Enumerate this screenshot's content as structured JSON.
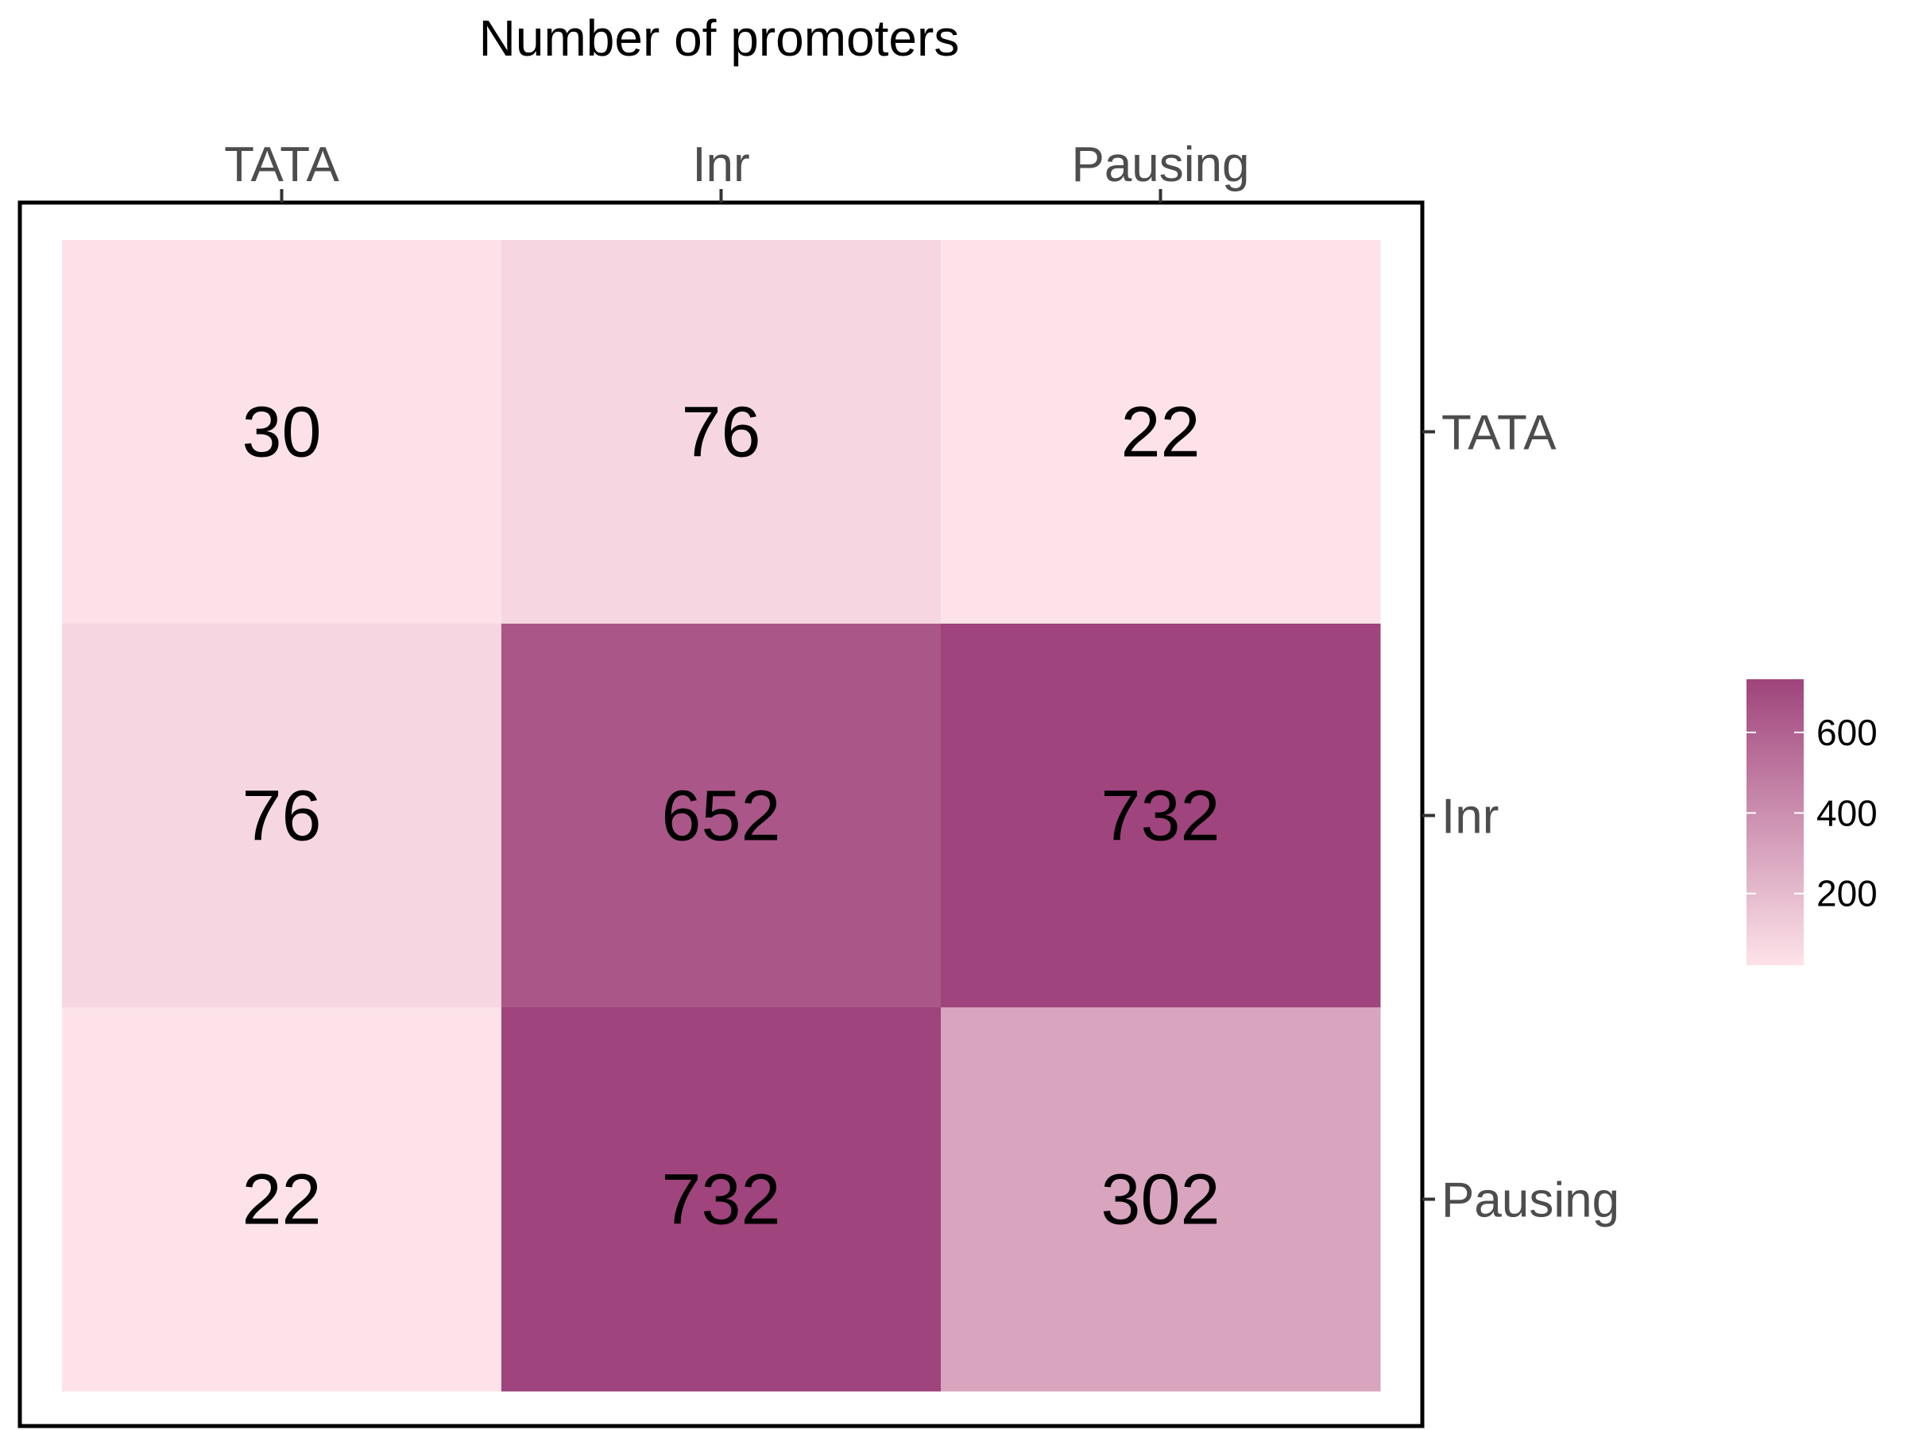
{
  "chart_data": {
    "type": "heatmap",
    "title": "Number of promoters",
    "x_categories": [
      "TATA",
      "Inr",
      "Pausing"
    ],
    "y_categories": [
      "TATA",
      "Inr",
      "Pausing"
    ],
    "values": [
      [
        30,
        76,
        22
      ],
      [
        76,
        652,
        732
      ],
      [
        22,
        732,
        302
      ]
    ],
    "x_axis_position": "top",
    "y_axis_position": "right",
    "grid": false,
    "legend": {
      "placement": "right",
      "min": 22,
      "max": 732,
      "ticks": [
        200,
        400,
        600
      ],
      "tick_labels": [
        "200",
        "400",
        "600"
      ]
    },
    "colors": {
      "low": "#fde3e9",
      "high": "#9f447c",
      "frame": "#000000",
      "tick_text": "#4d4d4d",
      "cell_text": "#000000"
    }
  }
}
